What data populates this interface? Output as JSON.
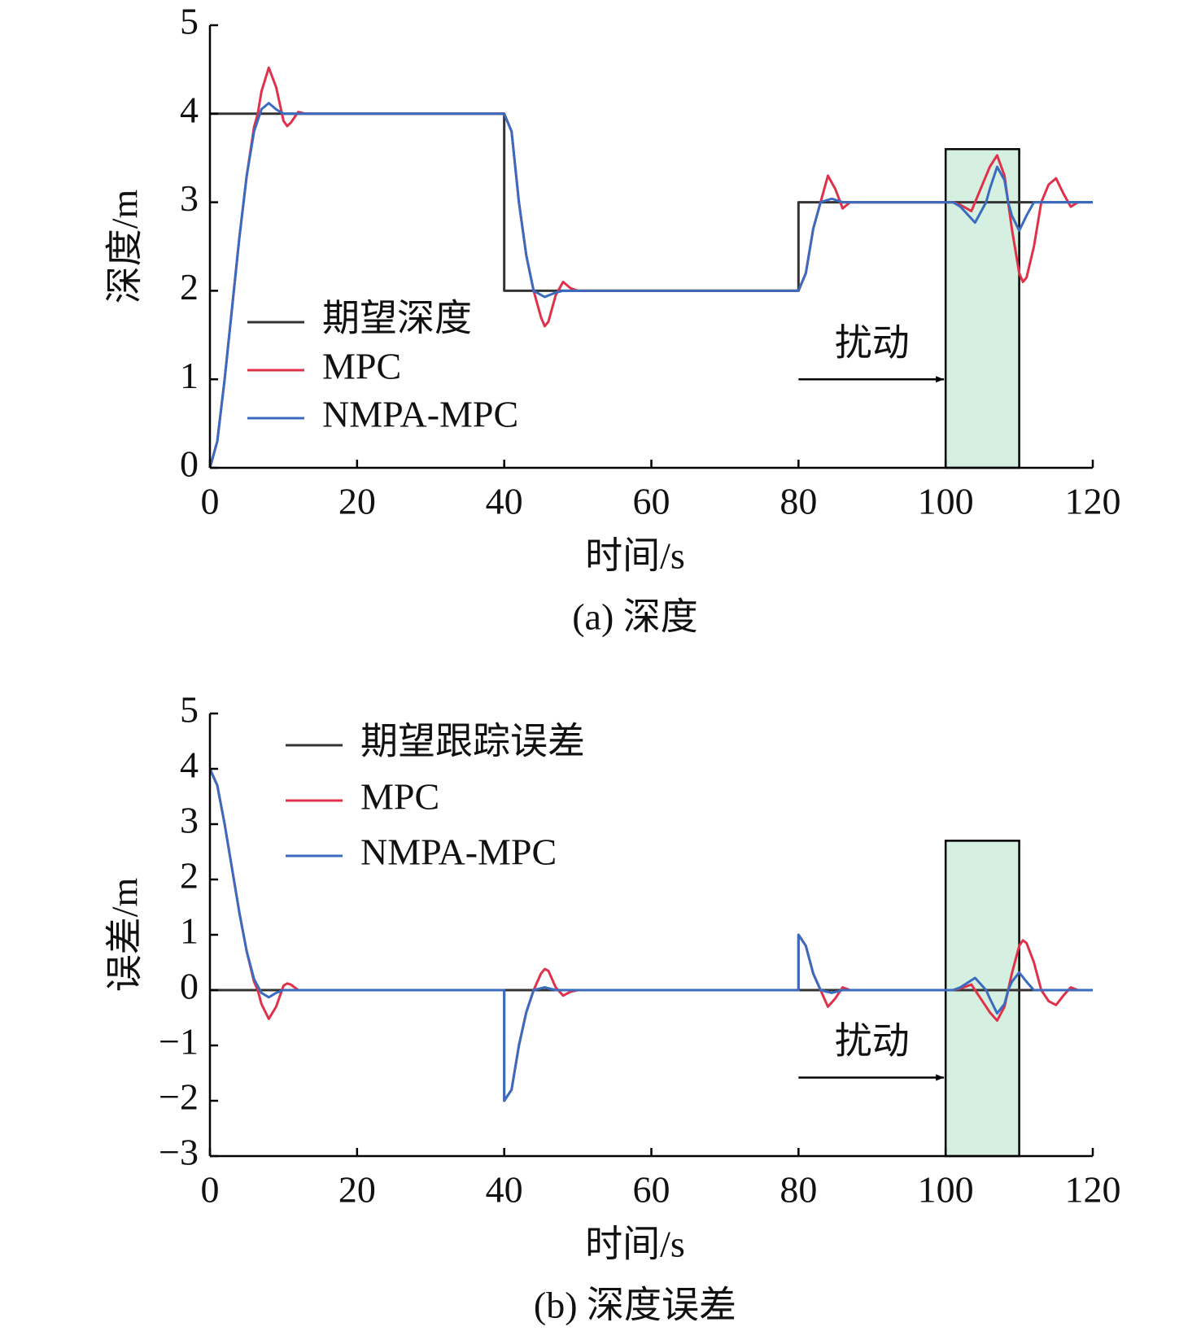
{
  "chart_data": [
    {
      "type": "line",
      "caption": "(a) 深度",
      "xlabel": "时间/s",
      "ylabel": "深度/m",
      "xlim": [
        0,
        120
      ],
      "xticks": [
        0,
        20,
        40,
        60,
        80,
        100,
        120
      ],
      "ylim": [
        0,
        5
      ],
      "yticks": [
        0,
        1,
        2,
        3,
        4,
        5
      ],
      "legend": "center left",
      "highlight": {
        "x": [
          100,
          110
        ],
        "y": [
          0,
          3.6
        ],
        "color": "#d5f0e0"
      },
      "annotation": {
        "text": "扰动",
        "arrow": {
          "x": [
            80,
            100
          ],
          "y": 1
        }
      },
      "series": [
        {
          "name": "期望深度",
          "color": "#333333",
          "x": [
            0,
            40,
            40,
            80,
            80,
            120
          ],
          "values": [
            4,
            4,
            2,
            2,
            3,
            3
          ]
        },
        {
          "name": "MPC",
          "color": "#e0314b",
          "x": [
            0,
            1,
            2,
            3,
            4,
            5,
            6,
            6.5,
            7,
            8,
            9,
            10,
            10.5,
            11,
            12,
            13,
            14,
            40,
            41,
            42,
            43,
            44,
            45,
            45.5,
            46,
            47,
            48,
            49,
            50,
            80,
            81,
            82,
            83,
            84,
            85,
            86,
            87,
            101,
            102,
            103.5,
            105,
            106,
            107,
            108,
            108.5,
            109,
            110,
            110.5,
            111,
            112,
            113,
            114,
            115,
            116,
            117,
            118
          ],
          "values": [
            0,
            0.3,
            1.0,
            1.8,
            2.6,
            3.3,
            3.85,
            4.0,
            4.25,
            4.52,
            4.3,
            3.92,
            3.86,
            3.9,
            4.02,
            4.0,
            4.0,
            4.0,
            3.8,
            3.0,
            2.4,
            2.0,
            1.7,
            1.6,
            1.65,
            1.95,
            2.1,
            2.03,
            2.0,
            2.0,
            2.2,
            2.7,
            3.0,
            3.3,
            3.15,
            2.93,
            3.0,
            3.0,
            2.97,
            2.9,
            3.2,
            3.4,
            3.53,
            3.3,
            3.0,
            2.7,
            2.2,
            2.1,
            2.15,
            2.5,
            3.0,
            3.2,
            3.27,
            3.1,
            2.95,
            3.0
          ]
        },
        {
          "name": "NMPA-MPC",
          "color": "#3a6bbf",
          "x": [
            0,
            1,
            2,
            3,
            4,
            5,
            6,
            7,
            8,
            9,
            10,
            40,
            41,
            42,
            43,
            44,
            45.5,
            47,
            48,
            80,
            81,
            82,
            83,
            84.5,
            86,
            101,
            102,
            104,
            105.5,
            106,
            107,
            108,
            108.5,
            109,
            110,
            111,
            112,
            120
          ],
          "values": [
            0,
            0.3,
            1.0,
            1.8,
            2.6,
            3.3,
            3.8,
            4.05,
            4.12,
            4.05,
            4.0,
            4.0,
            3.8,
            3.0,
            2.4,
            2.0,
            1.93,
            1.98,
            2.0,
            2.0,
            2.2,
            2.7,
            3.0,
            3.04,
            3.0,
            3.0,
            2.95,
            2.77,
            3.0,
            3.15,
            3.4,
            3.25,
            3.0,
            2.85,
            2.68,
            2.85,
            3.0,
            3.0
          ]
        }
      ]
    },
    {
      "type": "line",
      "caption": "(b) 深度误差",
      "xlabel": "时间/s",
      "ylabel": "误差/m",
      "xlim": [
        0,
        120
      ],
      "xticks": [
        0,
        20,
        40,
        60,
        80,
        100,
        120
      ],
      "ylim": [
        -3,
        5
      ],
      "yticks": [
        {
          "value": -3,
          "label": "−3"
        },
        {
          "value": -2,
          "label": "−2"
        },
        {
          "value": -1,
          "label": "−1"
        },
        0,
        1,
        2,
        3,
        4,
        5
      ],
      "legend": "upper left",
      "highlight": {
        "x": [
          100,
          110
        ],
        "y": [
          -3,
          2.7
        ],
        "color": "#d5f0e0"
      },
      "annotation": {
        "text": "扰动",
        "arrow": {
          "x": [
            80,
            100
          ],
          "y": -1.58
        }
      },
      "series": [
        {
          "name": "期望跟踪误差",
          "color": "#333333",
          "x": [
            0,
            120
          ],
          "values": [
            0,
            0
          ]
        },
        {
          "name": "MPC",
          "color": "#e0314b",
          "x": [
            0,
            1,
            2,
            3,
            4,
            5,
            6,
            6.5,
            7,
            8,
            9,
            10,
            10.5,
            11,
            12,
            14,
            40,
            40,
            41,
            42,
            43,
            44,
            45,
            45.5,
            46,
            47,
            48,
            49,
            50,
            80,
            80,
            81,
            82,
            83,
            84,
            85,
            86,
            87,
            101,
            102,
            103.5,
            105,
            106,
            107,
            108,
            108.5,
            109,
            110,
            110.5,
            111,
            112,
            113,
            114,
            115,
            116,
            117,
            118,
            120
          ],
          "values": [
            4,
            3.7,
            3.0,
            2.2,
            1.4,
            0.7,
            0.15,
            0,
            -0.25,
            -0.52,
            -0.3,
            0.08,
            0.12,
            0.1,
            0,
            0,
            0,
            -2,
            -1.8,
            -1.0,
            -0.4,
            0,
            0.3,
            0.38,
            0.35,
            0.05,
            -0.1,
            -0.03,
            0,
            0,
            1,
            0.8,
            0.3,
            0,
            -0.3,
            -0.15,
            0.05,
            0,
            0,
            0.03,
            0.1,
            -0.2,
            -0.4,
            -0.55,
            -0.3,
            0,
            0.3,
            0.8,
            0.9,
            0.85,
            0.5,
            0,
            -0.2,
            -0.27,
            -0.1,
            0.05,
            0,
            0
          ]
        },
        {
          "name": "NMPA-MPC",
          "color": "#3a6bbf",
          "x": [
            0,
            1,
            2,
            3,
            4,
            5,
            6,
            7,
            8,
            9,
            10,
            40,
            40,
            41,
            42,
            43,
            44,
            45.5,
            47,
            80,
            80,
            81,
            82,
            83,
            84.5,
            86,
            101,
            102,
            104,
            105.5,
            106,
            107,
            108,
            108.5,
            109,
            110,
            111,
            112,
            120
          ],
          "values": [
            4,
            3.7,
            3.0,
            2.2,
            1.4,
            0.7,
            0.2,
            -0.05,
            -0.13,
            -0.05,
            0,
            0,
            -2,
            -1.8,
            -1.0,
            -0.4,
            0,
            0.05,
            0,
            0,
            1,
            0.8,
            0.3,
            0,
            -0.05,
            0,
            0,
            0.05,
            0.22,
            0,
            -0.15,
            -0.42,
            -0.25,
            0,
            0.15,
            0.32,
            0.15,
            0,
            0
          ]
        }
      ]
    }
  ]
}
